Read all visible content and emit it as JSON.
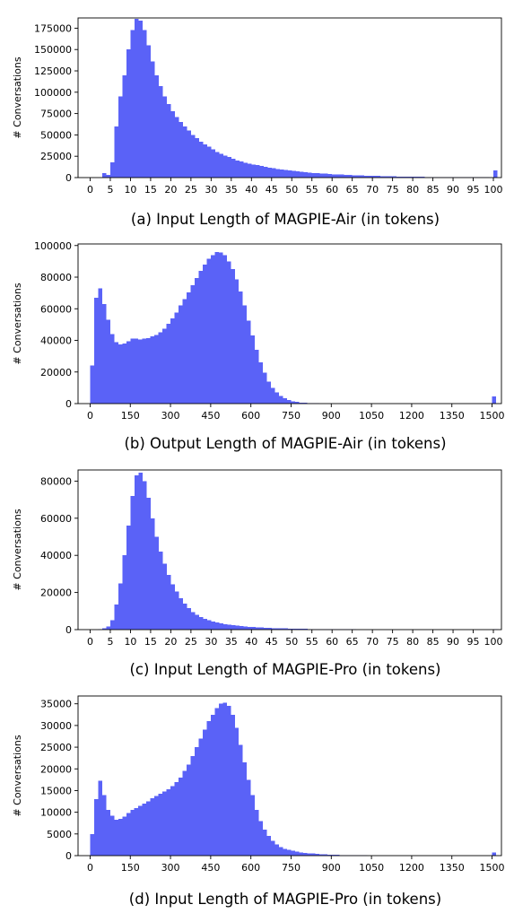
{
  "figure": {
    "bar_color": "#5a62f7",
    "panels": [
      {
        "caption": "(a) Input Length of MAGPIE-Air (in tokens)",
        "chart_data": {
          "type": "bar",
          "title": "",
          "xlabel": "",
          "ylabel": "# Conversations",
          "xlim": [
            -3,
            102
          ],
          "ylim": [
            0,
            187000
          ],
          "x_ticks": [
            0,
            5,
            10,
            15,
            20,
            25,
            30,
            35,
            40,
            45,
            50,
            55,
            60,
            65,
            70,
            75,
            80,
            85,
            90,
            95,
            100
          ],
          "y_ticks": [
            0,
            25000,
            50000,
            75000,
            100000,
            125000,
            150000,
            175000
          ],
          "bins": {
            "start": 0,
            "width": 1
          },
          "values": [
            0,
            0,
            0,
            5000,
            3000,
            18000,
            60000,
            95000,
            120000,
            150000,
            173000,
            186000,
            184000,
            173000,
            155000,
            136000,
            120000,
            107000,
            95000,
            86000,
            78000,
            71000,
            65000,
            60000,
            55000,
            50000,
            46000,
            42000,
            39000,
            36000,
            33000,
            30000,
            28000,
            26000,
            24000,
            22000,
            20000,
            19000,
            17500,
            16500,
            15500,
            14500,
            13500,
            12500,
            11500,
            10800,
            10000,
            9400,
            8800,
            8200,
            7700,
            7200,
            6700,
            6300,
            5900,
            5500,
            5100,
            4800,
            4500,
            4200,
            3900,
            3700,
            3450,
            3200,
            3000,
            2800,
            2600,
            2450,
            2300,
            2150,
            2000,
            1850,
            1700,
            1600,
            1500,
            1400,
            1300,
            1200,
            1120,
            1050,
            980,
            910,
            850,
            790,
            730,
            680,
            630,
            590,
            550,
            510,
            480,
            450,
            420,
            390,
            360,
            340,
            320,
            300,
            280,
            260,
            8500
          ]
        }
      },
      {
        "caption": "(b) Output Length of MAGPIE-Air (in tokens)",
        "chart_data": {
          "type": "bar",
          "title": "",
          "xlabel": "",
          "ylabel": "# Conversations",
          "xlim": [
            -45,
            1535
          ],
          "ylim": [
            0,
            101000
          ],
          "x_ticks": [
            0,
            150,
            300,
            450,
            600,
            750,
            900,
            1050,
            1200,
            1350,
            1500
          ],
          "y_ticks": [
            0,
            20000,
            40000,
            60000,
            80000,
            100000
          ],
          "bins": {
            "start": 0,
            "width": 15
          },
          "values": [
            24000,
            67000,
            73000,
            63000,
            53000,
            44000,
            39000,
            37500,
            38000,
            39500,
            41000,
            41000,
            40500,
            41000,
            41500,
            42500,
            43500,
            45000,
            47500,
            50500,
            54000,
            57500,
            62000,
            66000,
            70500,
            75000,
            79500,
            84000,
            88000,
            91500,
            94000,
            96000,
            95500,
            94000,
            90000,
            85000,
            78500,
            71000,
            62000,
            52500,
            43000,
            34000,
            26000,
            19500,
            14000,
            10000,
            7000,
            4800,
            3300,
            2200,
            1500,
            1000,
            700,
            500,
            350,
            250,
            170,
            120,
            80,
            60,
            40,
            30,
            20,
            15,
            12,
            10,
            8,
            7,
            6,
            5,
            5,
            5,
            5,
            5,
            5,
            5,
            5,
            5,
            5,
            5,
            5,
            5,
            5,
            5,
            5,
            5,
            5,
            5,
            5,
            5,
            5,
            5,
            5,
            5,
            5,
            5,
            5,
            5,
            5,
            5,
            4500
          ]
        }
      },
      {
        "caption": "(c) Input Length of MAGPIE-Pro (in tokens)",
        "chart_data": {
          "type": "bar",
          "title": "",
          "xlabel": "",
          "ylabel": "# Conversations",
          "xlim": [
            -3,
            102
          ],
          "ylim": [
            0,
            86000
          ],
          "x_ticks": [
            0,
            5,
            10,
            15,
            20,
            25,
            30,
            35,
            40,
            45,
            50,
            55,
            60,
            65,
            70,
            75,
            80,
            85,
            90,
            95,
            100
          ],
          "y_ticks": [
            0,
            20000,
            40000,
            60000,
            80000
          ],
          "bins": {
            "start": 0,
            "width": 1
          },
          "values": [
            0,
            0,
            300,
            800,
            1700,
            5000,
            13500,
            25000,
            40000,
            56000,
            72000,
            83000,
            84500,
            80000,
            71000,
            60000,
            50000,
            42000,
            35500,
            29500,
            24500,
            20500,
            17000,
            14000,
            11500,
            9500,
            8000,
            6800,
            5800,
            5000,
            4300,
            3800,
            3400,
            3000,
            2700,
            2400,
            2150,
            1900,
            1700,
            1550,
            1400,
            1250,
            1100,
            1000,
            900,
            820,
            740,
            670,
            610,
            550,
            500,
            460,
            420,
            380,
            350,
            320,
            290,
            260,
            240,
            220,
            200,
            185,
            170,
            155,
            140,
            130,
            120,
            110,
            100,
            90,
            85,
            80,
            75,
            70,
            65,
            60,
            55,
            50,
            46,
            42,
            38,
            35,
            32,
            29,
            26,
            24,
            22,
            20,
            18,
            16,
            15,
            14,
            13,
            12,
            11,
            10,
            9,
            8,
            7,
            6,
            200
          ]
        }
      },
      {
        "caption": "(d) Input Length of MAGPIE-Pro (in tokens)",
        "chart_data": {
          "type": "bar",
          "title": "",
          "xlabel": "",
          "ylabel": "# Conversations",
          "xlim": [
            -45,
            1535
          ],
          "ylim": [
            0,
            36800
          ],
          "x_ticks": [
            0,
            150,
            300,
            450,
            600,
            750,
            900,
            1050,
            1200,
            1350,
            1500
          ],
          "y_ticks": [
            0,
            5000,
            10000,
            15000,
            20000,
            25000,
            30000,
            35000
          ],
          "bins": {
            "start": 0,
            "width": 15
          },
          "values": [
            5000,
            13000,
            17300,
            14000,
            10500,
            9200,
            8300,
            8500,
            9000,
            9800,
            10500,
            11000,
            11500,
            12000,
            12500,
            13200,
            13800,
            14300,
            14800,
            15300,
            16000,
            17000,
            18000,
            19500,
            21000,
            23000,
            25000,
            27000,
            29000,
            31000,
            32500,
            34000,
            35000,
            35200,
            34500,
            32500,
            29500,
            25500,
            21500,
            17500,
            14000,
            10500,
            8000,
            6000,
            4500,
            3400,
            2600,
            2000,
            1600,
            1300,
            1100,
            900,
            750,
            650,
            550,
            470,
            400,
            340,
            290,
            250,
            210,
            180,
            150,
            130,
            110,
            95,
            80,
            70,
            60,
            50,
            45,
            40,
            35,
            30,
            26,
            22,
            19,
            16,
            14,
            12,
            10,
            9,
            8,
            7,
            6,
            5,
            5,
            5,
            5,
            5,
            5,
            5,
            5,
            5,
            5,
            5,
            5,
            5,
            5,
            5,
            700
          ]
        }
      }
    ]
  }
}
